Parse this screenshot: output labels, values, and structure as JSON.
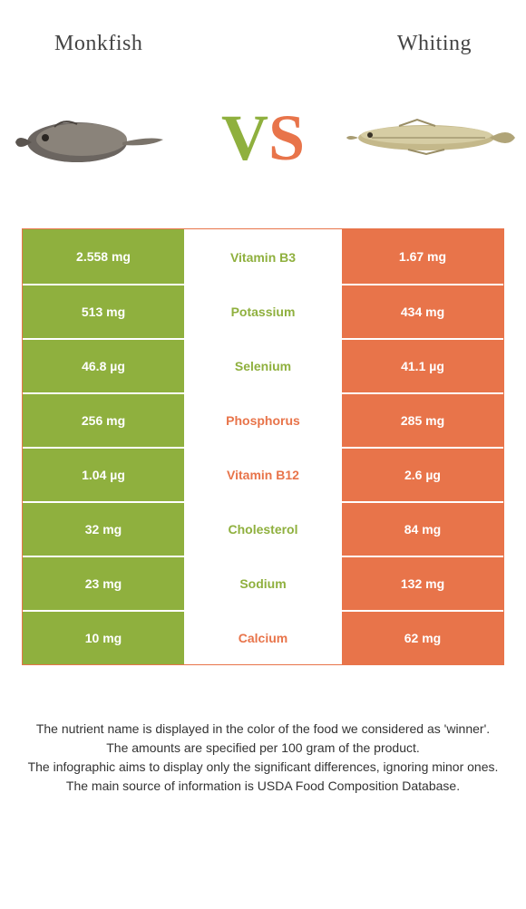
{
  "header": {
    "left_title": "Monkfish",
    "right_title": "Whiting"
  },
  "vs": {
    "v": "V",
    "s": "S"
  },
  "colors": {
    "green": "#8fb03e",
    "orange": "#e8744a",
    "white": "#ffffff",
    "text": "#333333"
  },
  "nutrients": [
    {
      "label": "Vitamin B3",
      "left": "2.558 mg",
      "right": "1.67 mg",
      "winner": "left"
    },
    {
      "label": "Potassium",
      "left": "513 mg",
      "right": "434 mg",
      "winner": "left"
    },
    {
      "label": "Selenium",
      "left": "46.8 µg",
      "right": "41.1 µg",
      "winner": "left"
    },
    {
      "label": "Phosphorus",
      "left": "256 mg",
      "right": "285 mg",
      "winner": "right"
    },
    {
      "label": "Vitamin B12",
      "left": "1.04 µg",
      "right": "2.6 µg",
      "winner": "right"
    },
    {
      "label": "Cholesterol",
      "left": "32 mg",
      "right": "84 mg",
      "winner": "left"
    },
    {
      "label": "Sodium",
      "left": "23 mg",
      "right": "132 mg",
      "winner": "left"
    },
    {
      "label": "Calcium",
      "left": "10 mg",
      "right": "62 mg",
      "winner": "right"
    }
  ],
  "footer": {
    "line1": "The nutrient name is displayed in the color of the food we considered as 'winner'.",
    "line2": "The amounts are specified per 100 gram of the product.",
    "line3": "The infographic aims to display only the significant differences, ignoring minor ones.",
    "line4": "The main source of information is USDA Food Composition Database."
  }
}
